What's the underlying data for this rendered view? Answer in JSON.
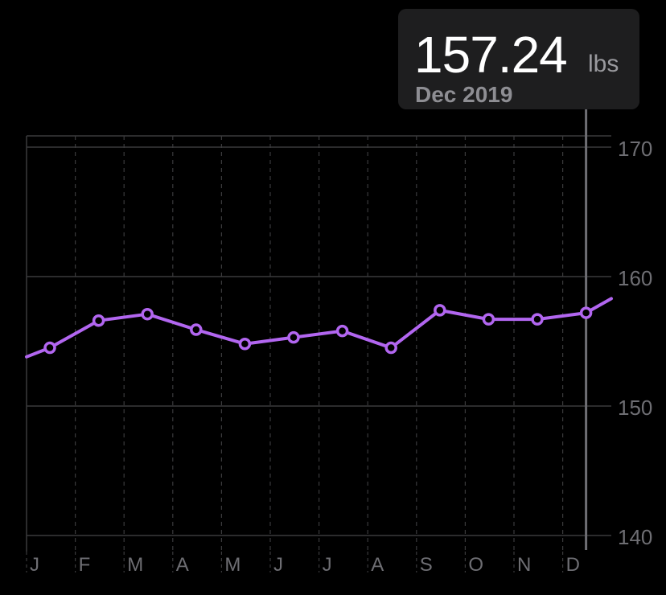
{
  "tooltip": {
    "value": "157.24",
    "unit": "lbs",
    "date": "Dec 2019"
  },
  "chart_data": {
    "type": "line",
    "title": "",
    "xlabel": "",
    "ylabel": "",
    "categories": [
      "J",
      "F",
      "M",
      "A",
      "M",
      "J",
      "J",
      "A",
      "S",
      "O",
      "N",
      "D"
    ],
    "x_start_value": 153.8,
    "x_end_value": 158.3,
    "values": [
      154.5,
      156.6,
      157.1,
      155.9,
      154.8,
      155.3,
      155.8,
      154.5,
      157.4,
      156.7,
      156.7,
      157.2
    ],
    "ylim": [
      140,
      170
    ],
    "y_ticks": [
      140,
      150,
      160,
      170
    ],
    "selected_index": 11,
    "line_color": "#b266f0",
    "grid_color": "#3a3a3c",
    "tick_label_color": "#6e6e73",
    "grid": true
  }
}
